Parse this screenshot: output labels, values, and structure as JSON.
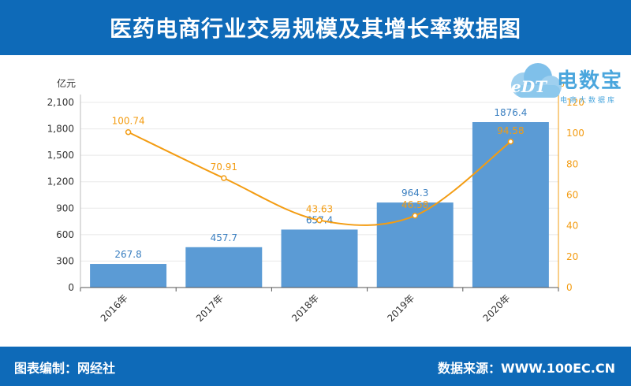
{
  "header": {
    "title": "医药电商行业交易规模及其增长率数据图"
  },
  "footer": {
    "left": "图表编制：网经社",
    "right": "数据来源：WWW.100EC.CN"
  },
  "logo": {
    "text": "电数宝",
    "sub": "电商大数据库",
    "mark": "eDT"
  },
  "colors": {
    "header": "#0e6ab8",
    "bar": "#5b9bd5",
    "line": "#f39c12",
    "axis": "#333333",
    "grid": "#e8e8e8"
  },
  "chart_data": {
    "type": "bar+line",
    "categories": [
      "2016年",
      "2017年",
      "2018年",
      "2019年",
      "2020年"
    ],
    "series": [
      {
        "values": [
          267.8,
          457.7,
          657.4,
          964.3,
          1876.4
        ],
        "axis": "left",
        "kind": "bar",
        "labels": [
          "267.8",
          "457.7",
          "657.4",
          "964.3",
          "1876.4"
        ]
      },
      {
        "values": [
          100.74,
          70.91,
          43.63,
          46.58,
          94.58
        ],
        "axis": "right",
        "kind": "line",
        "labels": [
          "100.74",
          "70.91",
          "43.63",
          "46.58",
          "94.58"
        ]
      }
    ],
    "y_left": {
      "unit": "亿元",
      "ylim": [
        0,
        2100
      ],
      "ticks": [
        "0",
        "300",
        "600",
        "900",
        "1,200",
        "1,500",
        "1,800",
        "2,100"
      ]
    },
    "y_right": {
      "unit": "%",
      "ylim": [
        0,
        120
      ],
      "ticks": [
        "0",
        "20",
        "40",
        "60",
        "80",
        "100",
        "120"
      ]
    },
    "grid": true
  }
}
